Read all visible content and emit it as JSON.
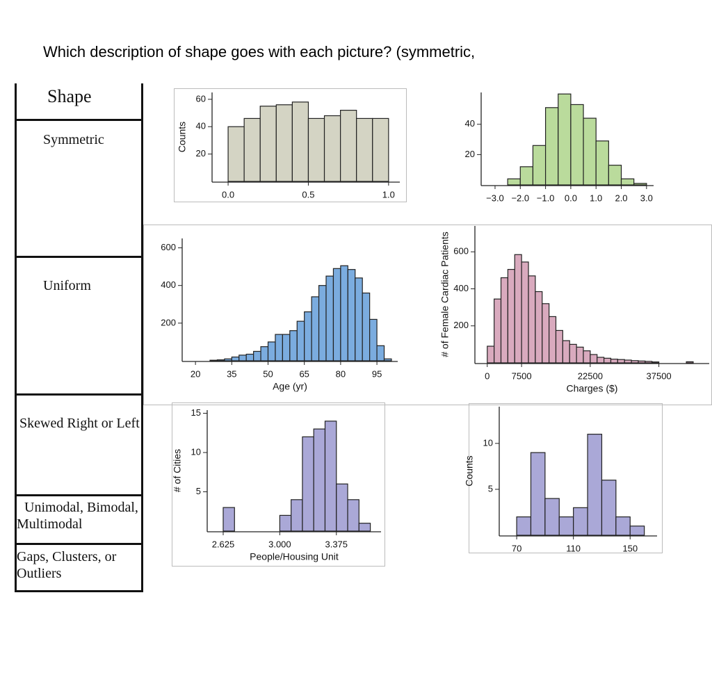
{
  "question": "Which description of shape goes with each picture? (symmetric,",
  "table": {
    "header": "Shape",
    "rows": [
      "Symmetric",
      "Uniform",
      "Skewed Right or Left",
      "Unimodal, Bimodal, Multimodal",
      "Gaps, Clusters, or Outliers"
    ]
  },
  "chart_data": [
    {
      "type": "histogram",
      "ylabel": "Counts",
      "color": "#d4d4c4",
      "bins": [
        0,
        0.1,
        0.2,
        0.3,
        0.4,
        0.5,
        0.6,
        0.7,
        0.8,
        0.9,
        1.0
      ],
      "values": [
        40,
        46,
        55,
        56,
        58,
        46,
        48,
        52,
        46,
        46
      ],
      "xlim": [
        -0.1,
        1.07
      ],
      "ylim": [
        0,
        65
      ],
      "xticks": [
        {
          "value": 0,
          "label": "0.0"
        },
        0.5,
        {
          "value": 1,
          "label": "1.0"
        }
      ],
      "yticks": [
        20,
        40,
        60
      ]
    },
    {
      "type": "histogram",
      "color": "#badb9c",
      "bins": [
        -2.5,
        -2,
        -1.5,
        -1,
        -0.5,
        0,
        0.5,
        1,
        1.5,
        2,
        2.5,
        3
      ],
      "values": [
        4,
        12,
        26,
        51,
        60,
        53,
        44,
        29,
        13,
        4,
        1
      ],
      "xlim": [
        -3.55,
        3.28
      ],
      "ylim": [
        0,
        61
      ],
      "xticks": [
        {
          "value": -3,
          "label": "−3.0"
        },
        {
          "value": -2,
          "label": "−2.0"
        },
        {
          "value": -1,
          "label": "−1.0"
        },
        {
          "value": 0,
          "label": "0.0"
        },
        {
          "value": 1,
          "label": "1.0"
        },
        {
          "value": 2,
          "label": "2.0"
        },
        {
          "value": 3,
          "label": "3.0"
        }
      ],
      "yticks": [
        20,
        40
      ]
    },
    {
      "type": "histogram",
      "xlabel": "Age (yr)",
      "color": "#7bacdf",
      "bins": [
        26,
        29,
        32,
        35,
        38,
        41,
        44,
        47,
        50,
        53,
        56,
        59,
        62,
        65,
        68,
        71,
        74,
        77,
        80,
        83,
        86,
        89,
        92,
        95,
        98,
        101
      ],
      "values": [
        3,
        5,
        10,
        20,
        30,
        35,
        50,
        75,
        100,
        140,
        140,
        160,
        210,
        260,
        340,
        400,
        450,
        490,
        505,
        485,
        440,
        360,
        220,
        80,
        10
      ],
      "xlim": [
        14.5,
        103.6
      ],
      "ylim": [
        0,
        650
      ],
      "xticks": [
        20,
        35,
        50,
        65,
        80,
        95
      ],
      "yticks": [
        200,
        400,
        600
      ]
    },
    {
      "type": "histogram",
      "xlabel": "Charges ($)",
      "ylabel": "# of Female Cardiac Patients",
      "color": "#d9aabe",
      "bins": [
        0,
        1500,
        3000,
        4500,
        6000,
        7500,
        9000,
        10500,
        12000,
        13500,
        15000,
        16500,
        18000,
        19500,
        21000,
        22500,
        24000,
        25500,
        27000,
        28500,
        30000,
        31500,
        33000,
        34500,
        36000,
        37500,
        39000,
        40500,
        42000,
        43500,
        45000
      ],
      "values": [
        90,
        345,
        460,
        505,
        585,
        545,
        470,
        385,
        320,
        250,
        175,
        120,
        100,
        85,
        65,
        45,
        30,
        25,
        20,
        18,
        15,
        12,
        10,
        8,
        5,
        0,
        0,
        0,
        0,
        6
      ],
      "xlim": [
        -2700,
        48500
      ],
      "ylim": [
        0,
        740
      ],
      "xticks": [
        0,
        7500,
        22500,
        37500
      ],
      "yticks": [
        200,
        400,
        600
      ]
    },
    {
      "type": "histogram",
      "xlabel": "People/Housing Unit",
      "ylabel": "# of Cities",
      "color": "#aaa8d7",
      "bins": [
        2.625,
        2.7,
        2.775,
        2.85,
        2.925,
        3.0,
        3.075,
        3.15,
        3.225,
        3.3,
        3.375,
        3.45,
        3.525,
        3.6
      ],
      "values": [
        3,
        0,
        0,
        0,
        0,
        2,
        4,
        12,
        13,
        14,
        6,
        4,
        1
      ],
      "xlim": [
        2.519,
        3.671
      ],
      "ylim": [
        0,
        15.4
      ],
      "xticks": [
        2.625,
        {
          "value": 3,
          "label": "3.000"
        },
        3.375
      ],
      "yticks": [
        5,
        10,
        15
      ]
    },
    {
      "type": "histogram",
      "ylabel": "Counts",
      "color": "#aaa8d7",
      "bins": [
        70,
        80,
        90,
        100,
        110,
        120,
        130,
        140,
        150,
        160
      ],
      "values": [
        2,
        9,
        4,
        2,
        3,
        11,
        6,
        2,
        1
      ],
      "xlim": [
        57.7,
        169
      ],
      "ylim": [
        0,
        14
      ],
      "xticks": [
        70,
        110,
        150
      ],
      "yticks": [
        5,
        10
      ]
    }
  ]
}
